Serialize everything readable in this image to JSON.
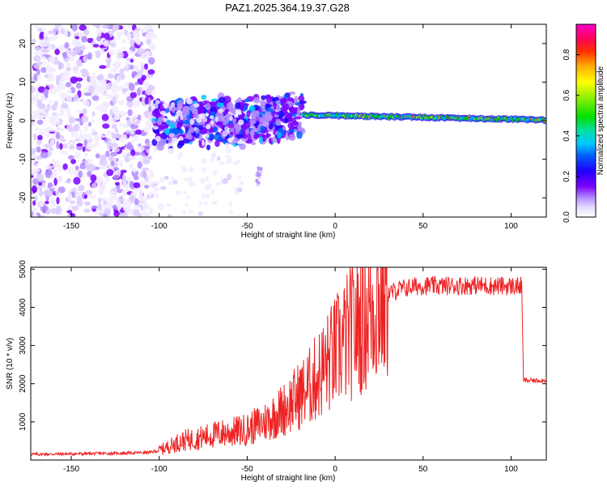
{
  "title": "PAZ1.2025.364.19.37.G28",
  "chart_data": [
    {
      "type": "heatmap",
      "name": "spectrogram",
      "xlabel": "Height of straight line (km)",
      "ylabel": "Frequency (Hz)",
      "xlim": [
        -173,
        120
      ],
      "ylim": [
        -25,
        25
      ],
      "xticks": [
        -150,
        -100,
        -50,
        0,
        50,
        100
      ],
      "yticks": [
        -20,
        -10,
        0,
        10,
        20
      ],
      "description_regions": [
        {
          "x_range": [
            -173,
            -103
          ],
          "freq_range": [
            -25,
            25
          ],
          "amplitude": "0.0-0.2 scattered"
        },
        {
          "x_range": [
            -103,
            -18
          ],
          "freq_range": [
            -10,
            6
          ],
          "amplitude": "0.1-0.4 clustered"
        },
        {
          "x_range": [
            -18,
            120
          ],
          "freq_range": [
            -1,
            2
          ],
          "amplitude": "0.3-0.95 narrow band near 0 Hz"
        }
      ],
      "colorbar": {
        "label": "Normalized spectral amplitude",
        "range": [
          0.0,
          0.95
        ],
        "ticks": [
          0.0,
          0.2,
          0.4,
          0.6,
          0.8
        ],
        "tick_labels": [
          "0.0",
          "0.2",
          "0.4",
          "0.6",
          "0.8"
        ]
      }
    },
    {
      "type": "line",
      "name": "snr",
      "xlabel": "Height of straight line (km)",
      "ylabel": "SNR (10 * v/v)",
      "xlim": [
        -173,
        120
      ],
      "ylim": [
        0,
        5050
      ],
      "xticks": [
        -150,
        -100,
        -50,
        0,
        50,
        100
      ],
      "yticks": [
        1000,
        2000,
        3000,
        4000,
        5000
      ],
      "series": [
        {
          "name": "SNR",
          "color": "#ee2222",
          "x": [
            -173,
            -150,
            -120,
            -105,
            -100,
            -95,
            -90,
            -85,
            -80,
            -75,
            -70,
            -65,
            -60,
            -55,
            -50,
            -45,
            -40,
            -35,
            -30,
            -25,
            -20,
            -15,
            -10,
            -5,
            0,
            5,
            10,
            15,
            20,
            25,
            30,
            35,
            40,
            45,
            50,
            60,
            70,
            80,
            90,
            100,
            106,
            107,
            110,
            120
          ],
          "y": [
            150,
            160,
            180,
            200,
            250,
            350,
            450,
            520,
            550,
            600,
            650,
            700,
            720,
            760,
            800,
            900,
            1000,
            1150,
            1300,
            1500,
            1700,
            1900,
            2200,
            2500,
            2800,
            3100,
            3400,
            3700,
            3950,
            4200,
            4350,
            4450,
            4500,
            4550,
            4570,
            4560,
            4570,
            4580,
            4560,
            4560,
            4550,
            2100,
            2080,
            2090
          ]
        }
      ]
    }
  ]
}
